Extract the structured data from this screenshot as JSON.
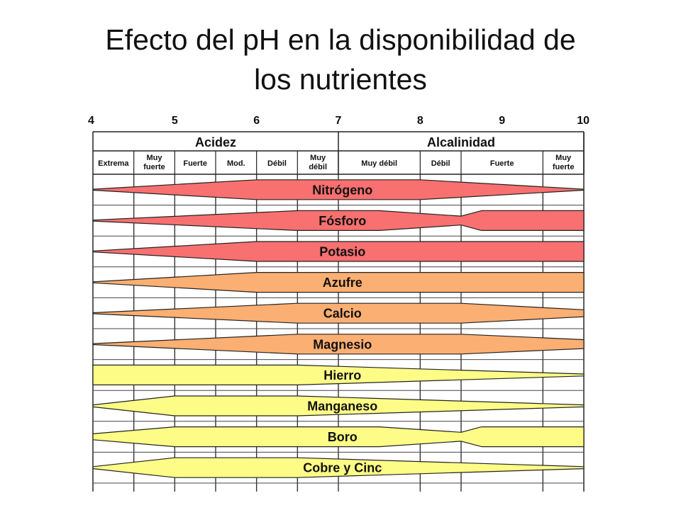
{
  "slide": {
    "title_line1": "Efecto del pH en la disponibilidad de",
    "title_line2": "los nutrientes"
  },
  "chart_data": {
    "type": "diagram",
    "x_axis_ticks": [
      "4",
      "5",
      "6",
      "7",
      "8",
      "9",
      "10"
    ],
    "xlim": [
      4,
      10
    ],
    "groups": [
      {
        "label": "Acidez",
        "from": 4,
        "to": 7
      },
      {
        "label": "Alcalinidad",
        "from": 7,
        "to": 10
      }
    ],
    "subgroups": [
      {
        "lines": [
          "Extrema"
        ],
        "from": 4.0,
        "to": 4.5
      },
      {
        "lines": [
          "Muy",
          "fuerte"
        ],
        "from": 4.5,
        "to": 5.0
      },
      {
        "lines": [
          "Fuerte"
        ],
        "from": 5.0,
        "to": 5.5
      },
      {
        "lines": [
          "Mod."
        ],
        "from": 5.5,
        "to": 6.0
      },
      {
        "lines": [
          "Débil"
        ],
        "from": 6.0,
        "to": 6.5
      },
      {
        "lines": [
          "Muy",
          "débil"
        ],
        "from": 6.5,
        "to": 7.0
      },
      {
        "lines": [
          "Muy débil"
        ],
        "from": 7.0,
        "to": 8.0
      },
      {
        "lines": [
          "Débil"
        ],
        "from": 8.0,
        "to": 8.5
      },
      {
        "lines": [
          "Fuerte"
        ],
        "from": 8.5,
        "to": 9.5
      },
      {
        "lines": [
          "Muy",
          "fuerte"
        ],
        "from": 9.5,
        "to": 10.0
      }
    ],
    "colors": {
      "red": "#f87070",
      "orange": "#fcaf72",
      "yellow": "#fdfc86",
      "outline": "#222222"
    },
    "nutrients": [
      {
        "name": "Nitrógeno",
        "color": "red",
        "profile": [
          [
            4,
            0.05
          ],
          [
            6,
            1
          ],
          [
            8,
            1
          ],
          [
            10,
            0.05
          ]
        ]
      },
      {
        "name": "Fósforo",
        "color": "red",
        "profile": [
          [
            4,
            0.05
          ],
          [
            6.5,
            1
          ],
          [
            7.5,
            1
          ],
          [
            8.5,
            0.45
          ],
          [
            8.75,
            1
          ],
          [
            10,
            1
          ]
        ]
      },
      {
        "name": "Potasio",
        "color": "red",
        "profile": [
          [
            4,
            0.05
          ],
          [
            6,
            1
          ],
          [
            10,
            1
          ]
        ]
      },
      {
        "name": "Azufre",
        "color": "orange",
        "profile": [
          [
            4,
            0.05
          ],
          [
            6,
            1
          ],
          [
            10,
            1
          ]
        ]
      },
      {
        "name": "Calcio",
        "color": "orange",
        "profile": [
          [
            4,
            0.05
          ],
          [
            6.5,
            1
          ],
          [
            8.5,
            1
          ],
          [
            10,
            0.35
          ]
        ]
      },
      {
        "name": "Magnesio",
        "color": "orange",
        "profile": [
          [
            4,
            0.05
          ],
          [
            6.5,
            1
          ],
          [
            8.5,
            1
          ],
          [
            10,
            0.45
          ]
        ]
      },
      {
        "name": "Hierro",
        "color": "yellow",
        "profile": [
          [
            4,
            1
          ],
          [
            6.5,
            1
          ],
          [
            10,
            0.1
          ]
        ]
      },
      {
        "name": "Manganeso",
        "color": "yellow",
        "profile": [
          [
            4,
            0.1
          ],
          [
            5,
            1
          ],
          [
            6.5,
            1
          ],
          [
            10,
            0.1
          ]
        ]
      },
      {
        "name": "Boro",
        "color": "yellow",
        "profile": [
          [
            4,
            0.3
          ],
          [
            5,
            1
          ],
          [
            7.5,
            1
          ],
          [
            8.5,
            0.45
          ],
          [
            8.75,
            1
          ],
          [
            10,
            1
          ]
        ]
      },
      {
        "name": "Cobre y Cinc",
        "color": "yellow",
        "profile": [
          [
            4,
            0.1
          ],
          [
            5,
            1
          ],
          [
            6.5,
            1
          ],
          [
            10,
            0.1
          ]
        ]
      }
    ]
  }
}
